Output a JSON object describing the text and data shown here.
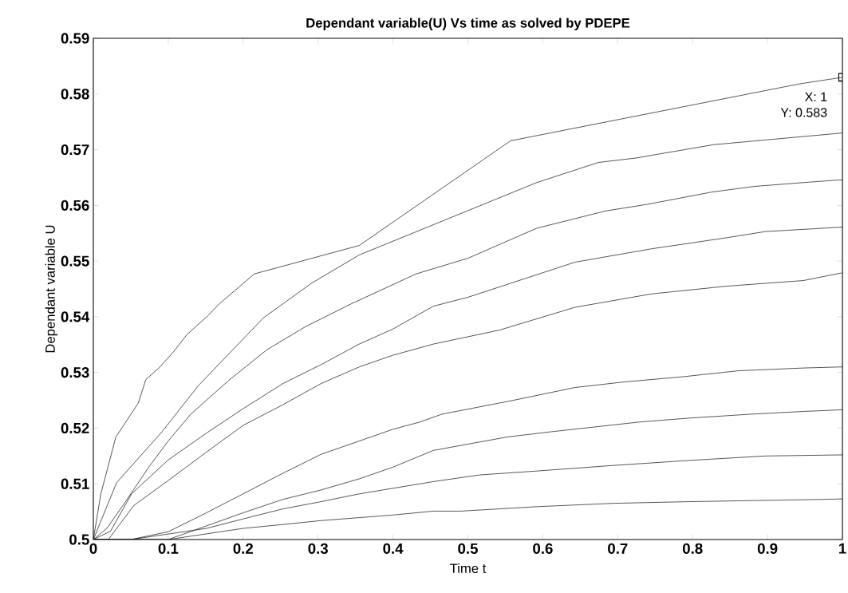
{
  "chart_data": {
    "type": "line",
    "title": "Dependant variable(U) Vs time as solved by PDEPE",
    "xlabel": "Time t",
    "ylabel": "Dependant variable U",
    "xlim": [
      0,
      1
    ],
    "ylim": [
      0.5,
      0.59
    ],
    "xticks": [
      0,
      0.1,
      0.2,
      0.3,
      0.4,
      0.5,
      0.6,
      0.7,
      0.8,
      0.9,
      1
    ],
    "yticks": [
      0.5,
      0.51,
      0.52,
      0.53,
      0.54,
      0.55,
      0.56,
      0.57,
      0.58,
      0.59
    ],
    "grid": false,
    "annotations": [
      {
        "text": "X: 1",
        "x": 1,
        "y": 0.583
      },
      "Y: 0.583"
    ],
    "series": [
      {
        "color": "#000000",
        "x": [
          0,
          0.01,
          0.03,
          0.06,
          0.07,
          0.089,
          0.107,
          0.125,
          0.153,
          0.168,
          0.215,
          0.355,
          0.557,
          0.942,
          1
        ],
        "values": [
          0.5,
          0.5082,
          0.5184,
          0.5245,
          0.5287,
          0.531,
          0.5337,
          0.5368,
          0.5402,
          0.5423,
          0.5477,
          0.5528,
          0.5716,
          0.5818,
          0.583
        ]
      },
      {
        "color": "#000000",
        "x": [
          0,
          0.031,
          0.092,
          0.14,
          0.227,
          0.291,
          0.355,
          0.592,
          0.674,
          0.724,
          0.828,
          1
        ],
        "values": [
          0.5,
          0.5102,
          0.5194,
          0.5276,
          0.5398,
          0.546,
          0.5511,
          0.5641,
          0.5677,
          0.5685,
          0.5709,
          0.573
        ]
      },
      {
        "color": "#000000",
        "x": [
          0,
          0.018,
          0.043,
          0.074,
          0.1,
          0.13,
          0.181,
          0.232,
          0.283,
          0.344,
          0.431,
          0.5,
          0.592,
          0.684,
          0.74,
          0.826,
          0.882,
          0.958,
          1
        ],
        "values": [
          0.5,
          0.502,
          0.5068,
          0.513,
          0.5177,
          0.5225,
          0.5286,
          0.5341,
          0.5382,
          0.5423,
          0.5477,
          0.5505,
          0.5559,
          0.559,
          0.5602,
          0.5624,
          0.5634,
          0.5642,
          0.5646
        ]
      },
      {
        "color": "#000000",
        "x": [
          0,
          0.023,
          0.051,
          0.1,
          0.151,
          0.2,
          0.253,
          0.304,
          0.355,
          0.4,
          0.454,
          0.5,
          0.643,
          0.745,
          0.846,
          0.897,
          1
        ],
        "values": [
          0.5,
          0.5015,
          0.5082,
          0.5143,
          0.5191,
          0.5235,
          0.528,
          0.5314,
          0.5351,
          0.5378,
          0.5419,
          0.5435,
          0.5498,
          0.5522,
          0.5542,
          0.5553,
          0.5561
        ]
      },
      {
        "color": "#000000",
        "x": [
          0,
          0.02,
          0.054,
          0.1,
          0.151,
          0.2,
          0.253,
          0.304,
          0.355,
          0.4,
          0.454,
          0.542,
          0.643,
          0.745,
          0.846,
          0.948,
          1
        ],
        "values": [
          0.5,
          0.5,
          0.5061,
          0.5106,
          0.5157,
          0.5205,
          0.5242,
          0.528,
          0.531,
          0.5331,
          0.5351,
          0.5376,
          0.5417,
          0.5441,
          0.5455,
          0.5465,
          0.5479
        ]
      },
      {
        "color": "#000000",
        "x": [
          0,
          0.05,
          0.1,
          0.151,
          0.2,
          0.253,
          0.304,
          0.4,
          0.436,
          0.465,
          0.557,
          0.643,
          0.709,
          0.785,
          0.861,
          0.948,
          1
        ],
        "values": [
          0.5,
          0.5,
          0.5014,
          0.5048,
          0.5082,
          0.5119,
          0.5153,
          0.5198,
          0.5211,
          0.5225,
          0.5249,
          0.5273,
          0.5283,
          0.5292,
          0.5303,
          0.5308,
          0.531
        ]
      },
      {
        "color": "#000000",
        "x": [
          0,
          0.1,
          0.2,
          0.253,
          0.304,
          0.355,
          0.4,
          0.454,
          0.552,
          0.608,
          0.729,
          0.795,
          0.877,
          0.948,
          1
        ],
        "values": [
          0.5,
          0.5,
          0.5048,
          0.5072,
          0.5089,
          0.5109,
          0.513,
          0.516,
          0.5184,
          0.5193,
          0.5211,
          0.5218,
          0.5225,
          0.523,
          0.5233
        ]
      },
      {
        "color": "#000000",
        "x": [
          0,
          0.05,
          0.151,
          0.2,
          0.253,
          0.304,
          0.355,
          0.4,
          0.454,
          0.516,
          0.592,
          0.694,
          0.795,
          0.897,
          1
        ],
        "values": [
          0.5,
          0.5,
          0.502,
          0.5037,
          0.5055,
          0.5068,
          0.5082,
          0.5092,
          0.5104,
          0.5116,
          0.5123,
          0.5133,
          0.5142,
          0.515,
          0.5152
        ]
      },
      {
        "color": "#000000",
        "x": [
          0,
          0.1,
          0.2,
          0.253,
          0.304,
          0.4,
          0.454,
          0.491,
          0.592,
          0.694,
          0.795,
          0.973,
          1
        ],
        "values": [
          0.5,
          0.5,
          0.502,
          0.5027,
          0.5034,
          0.5044,
          0.5051,
          0.5051,
          0.5059,
          0.5065,
          0.5068,
          0.5072,
          0.5073
        ]
      }
    ]
  }
}
